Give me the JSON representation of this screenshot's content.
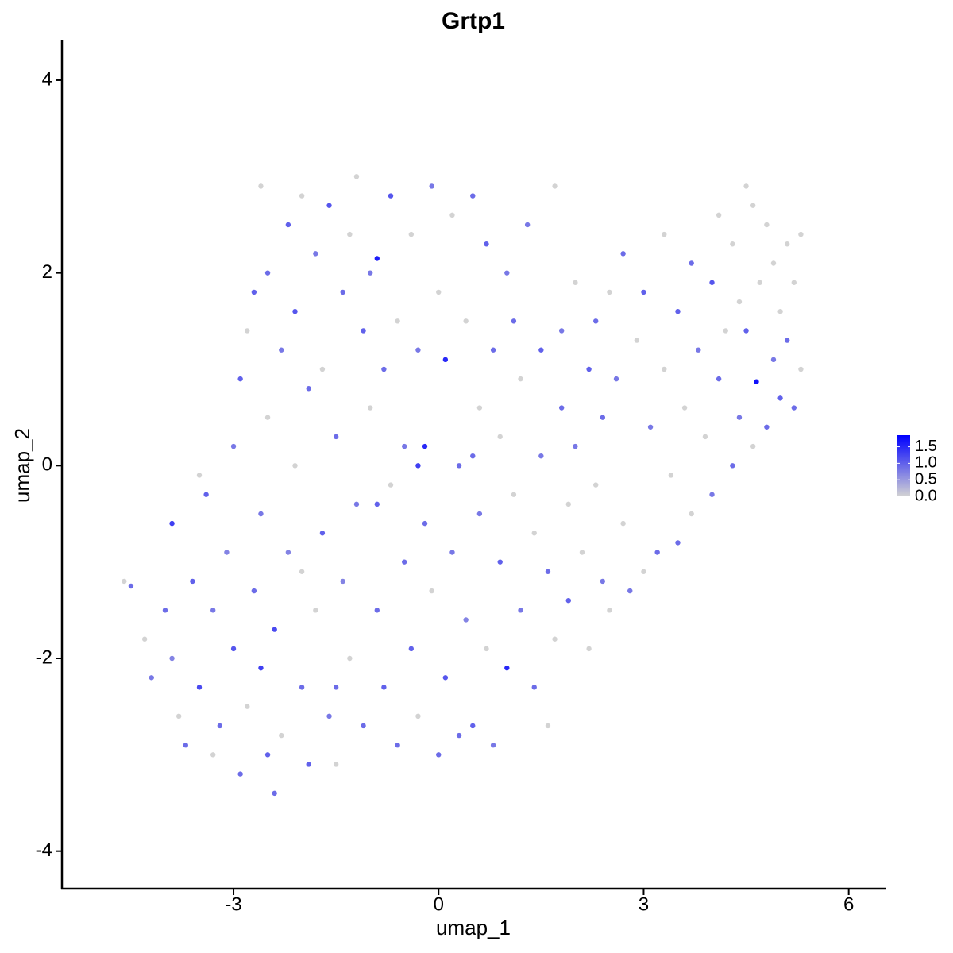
{
  "chart_data": {
    "type": "scatter",
    "title": "Grtp1",
    "xlabel": "umap_1",
    "ylabel": "umap_2",
    "xlim": [
      -5.51,
      6.55
    ],
    "ylim": [
      -4.39,
      4.42
    ],
    "xticks": [
      -3,
      0,
      3,
      6
    ],
    "yticks": [
      -4,
      -2,
      0,
      2,
      4
    ],
    "grid": false,
    "colors": [
      "#d3d3d3",
      "#0000ff"
    ],
    "colorlim": [
      0,
      1.85
    ],
    "colorbar_ticks": [
      {
        "value": 0,
        "label": "0.0"
      },
      0.5,
      {
        "value": 1,
        "label": "1.0"
      },
      1.5
    ],
    "x": [
      -4.6,
      -4.5,
      -4.3,
      -4.2,
      -4.0,
      -3.9,
      -3.8,
      -3.7,
      -3.6,
      -3.5,
      -3.4,
      -3.3,
      -3.3,
      -3.2,
      -3.1,
      -3.0,
      -3.0,
      -2.9,
      -2.9,
      -2.8,
      -2.8,
      -2.7,
      -2.7,
      -2.6,
      -2.6,
      -2.5,
      -2.5,
      -2.4,
      -2.4,
      -2.3,
      -2.3,
      -2.2,
      -2.2,
      -2.1,
      -2.1,
      -2.0,
      -2.0,
      -1.9,
      -1.9,
      -1.8,
      -1.8,
      -1.7,
      -1.7,
      -1.6,
      -1.6,
      -1.5,
      -1.5,
      -1.4,
      -1.4,
      -1.3,
      -1.3,
      -1.2,
      -1.2,
      -1.1,
      -1.1,
      -1.0,
      -1.0,
      -0.9,
      -0.9,
      -0.8,
      -0.8,
      -0.7,
      -0.7,
      -0.6,
      -0.6,
      -0.5,
      -0.5,
      -0.4,
      -0.4,
      -0.3,
      -0.3,
      -0.2,
      -0.2,
      -0.1,
      -0.1,
      0.0,
      0.0,
      0.1,
      0.1,
      0.2,
      0.2,
      0.3,
      0.3,
      0.4,
      0.4,
      0.5,
      0.5,
      0.6,
      0.6,
      0.7,
      0.7,
      0.8,
      0.8,
      0.9,
      0.9,
      1.0,
      1.0,
      1.1,
      1.1,
      1.2,
      1.2,
      1.3,
      1.4,
      1.4,
      1.5,
      1.5,
      1.6,
      1.7,
      1.7,
      1.8,
      1.8,
      1.9,
      1.9,
      2.0,
      2.0,
      2.1,
      2.2,
      2.2,
      2.3,
      2.3,
      2.4,
      2.4,
      2.5,
      2.5,
      2.6,
      2.7,
      2.7,
      2.8,
      2.9,
      3.0,
      3.0,
      3.1,
      3.2,
      3.3,
      3.3,
      3.4,
      3.5,
      3.5,
      3.6,
      3.7,
      3.7,
      3.8,
      3.9,
      4.0,
      4.0,
      4.1,
      4.1,
      4.2,
      4.3,
      4.3,
      4.4,
      4.4,
      4.5,
      4.5,
      4.6,
      4.6,
      4.65,
      4.7,
      4.8,
      4.8,
      4.9,
      4.9,
      5.0,
      5.0,
      5.1,
      5.1,
      5.2,
      5.2,
      5.3,
      5.3,
      -3.9,
      -3.5,
      -2.5,
      -2.0,
      -1.5,
      -0.9,
      -0.3,
      0.5,
      1.6,
      -2.6
    ],
    "y": [
      -1.2,
      -1.25,
      -1.8,
      -2.2,
      -1.5,
      -2.0,
      -2.6,
      -2.9,
      -1.2,
      -2.3,
      -0.3,
      -1.5,
      -3.0,
      -2.7,
      -0.9,
      0.2,
      -1.9,
      -3.2,
      0.9,
      -2.5,
      1.4,
      -1.3,
      1.8,
      -0.5,
      -2.1,
      2.0,
      0.5,
      -3.4,
      -1.7,
      1.2,
      -2.8,
      2.5,
      -0.9,
      0.0,
      1.6,
      -2.3,
      2.8,
      -3.1,
      0.8,
      -1.5,
      2.2,
      -0.7,
      1.0,
      -2.6,
      2.7,
      -3.1,
      0.3,
      1.8,
      -1.2,
      2.4,
      -2.0,
      -0.4,
      3.0,
      1.4,
      -2.7,
      0.6,
      2.0,
      2.15,
      -1.5,
      -2.3,
      1.0,
      -0.2,
      2.8,
      -2.9,
      1.5,
      0.2,
      -1.0,
      2.4,
      -1.9,
      1.2,
      -2.6,
      -0.6,
      0.2,
      2.9,
      -1.3,
      -3.0,
      1.8,
      -2.2,
      1.1,
      -0.9,
      2.6,
      -2.8,
      0.0,
      1.5,
      -1.6,
      2.8,
      -2.7,
      0.6,
      -0.5,
      2.3,
      -1.9,
      1.2,
      -2.9,
      -1.0,
      0.3,
      2.0,
      -2.1,
      -0.3,
      1.5,
      -1.5,
      0.9,
      2.5,
      -2.3,
      -0.7,
      1.2,
      0.1,
      -1.1,
      2.9,
      -1.8,
      0.6,
      1.4,
      -0.4,
      -1.4,
      1.9,
      0.2,
      -0.9,
      1.0,
      -1.9,
      1.5,
      -0.2,
      0.5,
      -1.2,
      1.8,
      -1.5,
      0.9,
      -0.6,
      2.2,
      -1.3,
      1.3,
      -1.1,
      1.8,
      0.4,
      -0.9,
      2.4,
      1.0,
      -0.1,
      1.6,
      -0.8,
      0.6,
      2.1,
      -0.5,
      1.2,
      0.3,
      1.9,
      -0.3,
      2.6,
      0.9,
      1.4,
      0.0,
      2.3,
      0.5,
      1.7,
      2.9,
      1.4,
      0.2,
      2.7,
      0.87,
      1.9,
      0.4,
      2.5,
      1.1,
      2.1,
      0.7,
      1.6,
      2.3,
      1.3,
      0.6,
      1.9,
      2.4,
      1.0,
      -0.6,
      -0.1,
      -3.0,
      -1.1,
      -2.3,
      -0.4,
      0.0,
      0.1,
      -2.7,
      2.9
    ],
    "values": [
      0,
      0.9,
      0,
      0.8,
      0.9,
      0.7,
      0,
      0.9,
      1.0,
      1.2,
      1.0,
      0.8,
      0,
      0.9,
      0.7,
      0.8,
      1.1,
      0.9,
      1.0,
      0,
      0,
      0.9,
      1.0,
      0.8,
      1.3,
      0.9,
      0,
      0.9,
      1.2,
      0.8,
      0,
      1.0,
      0.7,
      0,
      1.1,
      0.9,
      0,
      1.0,
      0.9,
      0,
      0.8,
      1.0,
      0,
      0.8,
      1.1,
      0,
      0.9,
      0.9,
      0.7,
      0,
      0,
      0.8,
      0,
      1.0,
      0.9,
      0,
      0.8,
      1.6,
      0.9,
      1.0,
      0.9,
      0,
      1.1,
      0.9,
      0,
      0.8,
      0.9,
      0,
      1.0,
      0.8,
      0,
      0.9,
      1.5,
      0.8,
      0,
      0.9,
      0,
      1.1,
      1.5,
      0.8,
      0,
      0.9,
      0.9,
      0,
      0.7,
      0.9,
      1.0,
      0,
      0.8,
      1.0,
      0,
      0.9,
      0.8,
      1.0,
      0,
      0.8,
      1.5,
      0,
      0.9,
      0.8,
      0,
      0.8,
      0.9,
      0,
      1.0,
      0.8,
      0.9,
      0,
      0,
      0.9,
      0.8,
      0,
      1.0,
      0,
      0.8,
      0,
      1.0,
      0,
      0.9,
      0,
      0.9,
      0.8,
      0,
      0,
      0.8,
      0,
      0.9,
      0.8,
      0,
      0,
      1.0,
      0.8,
      0.9,
      0,
      0,
      0,
      1.0,
      0.9,
      0,
      0.9,
      0,
      0.8,
      0,
      1.1,
      0.8,
      0,
      0.9,
      0,
      0.9,
      0,
      0.8,
      0,
      0,
      1.0,
      0,
      0,
      1.7,
      0,
      0.9,
      0,
      0.8,
      0,
      1.0,
      0,
      0,
      0.9,
      0.9,
      0,
      0,
      0,
      1.3,
      0,
      1.0,
      0,
      0.9,
      1.0,
      1.3,
      0.9,
      0,
      0
    ]
  }
}
